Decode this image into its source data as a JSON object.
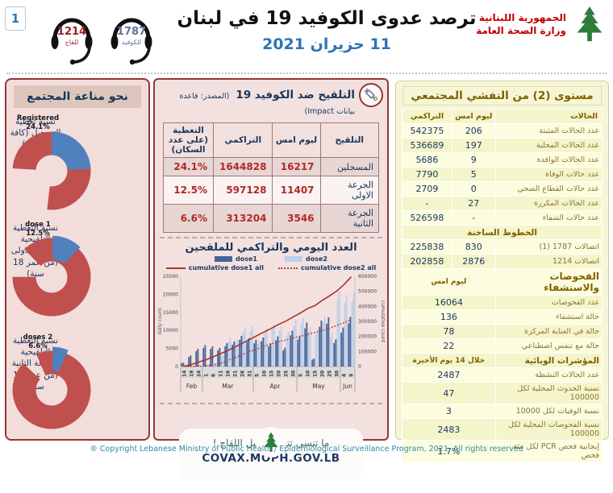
{
  "page_number": "1",
  "header": {
    "title": "ترصد عدوى الكوفيد 19 في لبنان",
    "date": "11 حزيران 2021",
    "hotline_vaccine": {
      "number": "1214",
      "label": "للقاح"
    },
    "hotline_covid": {
      "number": "1787",
      "label": "للكوفيد"
    },
    "logo_line1": "الجمهورية اللبنانية",
    "logo_line2": "وزارة الصحة العامة"
  },
  "immunity_panel": {
    "title": "نحو مناعة المجتمع",
    "colors": {
      "main": "#C0504D",
      "slice": "#4F81BD"
    },
    "donuts": [
      {
        "label": "نسبة تغطية التسجيل (كافة الاعمار)",
        "series_label": "Registered",
        "pct": 24.1,
        "pct_text": "24.1%",
        "explode": 0
      },
      {
        "label": "نسبة التغطية التلقيحية للجرعة الاولى (من عمر 18 سنة)",
        "series_label": "1 dose",
        "pct": 12.5,
        "pct_text": "12.5%",
        "explode": 3
      },
      {
        "label": "نسبة التغطية التلقيحية للجرعة الثانية (من عمر 18 سنة)",
        "series_label": "2 doses",
        "pct": 6.6,
        "pct_text": "6.6%",
        "explode": 5
      }
    ]
  },
  "vaccination": {
    "title": "التلقيح ضد الكوفيد 19",
    "source": "(المصدر: قاعدة بيانات Impact)",
    "syringe_icon": "syringe-icon",
    "table": {
      "headers": [
        "التلقيح",
        "ليوم امس",
        "التراكمي",
        "التغطية (على عدد السكان)"
      ],
      "rows": [
        {
          "label": "المسجلين",
          "yesterday": "16217",
          "cumulative": "1644828",
          "coverage": "24.1%"
        },
        {
          "label": "الجرعة الاولى",
          "yesterday": "11407",
          "cumulative": "597128",
          "coverage": "12.5%"
        },
        {
          "label": "الجرعة الثانية",
          "yesterday": "3546",
          "cumulative": "313204",
          "coverage": "6.6%"
        }
      ]
    }
  },
  "chart_data": {
    "type": "bar",
    "title": "العدد اليومي والتراكمي للملقحين",
    "x_tick_labels": [
      "14",
      "19",
      "24",
      "1",
      "6",
      "11",
      "16",
      "21",
      "26",
      "31",
      "5",
      "10",
      "15",
      "20",
      "25",
      "30",
      "5",
      "10",
      "15",
      "20",
      "25",
      "30",
      "4",
      "9"
    ],
    "month_groups": [
      {
        "label": "Feb",
        "ticks": 3
      },
      {
        "label": "Mar",
        "ticks": 7
      },
      {
        "label": "Apr",
        "ticks": 6
      },
      {
        "label": "May",
        "ticks": 6
      },
      {
        "label": "Jun",
        "ticks": 2
      }
    ],
    "left_axis": {
      "label": "daily count",
      "min": 0,
      "max": 25000,
      "step": 5000
    },
    "right_axis": {
      "label": "cumulative count",
      "min": 0,
      "max": 600000,
      "step": 100000
    },
    "series": [
      {
        "name": "dose1",
        "type": "bar",
        "color": "#44659B",
        "values": [
          1000,
          2900,
          4600,
          5600,
          5300,
          4900,
          6100,
          6600,
          8000,
          7400,
          7000,
          7600,
          6100,
          7900,
          4900,
          9400,
          8100,
          11500,
          2100,
          12000,
          12900,
          7100,
          10200,
          13000
        ]
      },
      {
        "name": "dose2",
        "type": "bar",
        "color": "#BDD0E9",
        "values": [
          0,
          100,
          300,
          500,
          900,
          3000,
          7400,
          7000,
          9900,
          10400,
          6600,
          9900,
          11000,
          10400,
          9000,
          12000,
          12500,
          10100,
          9500,
          13000,
          8600,
          19500,
          18600,
          19000
        ]
      },
      {
        "name": "cumulative dose1 all",
        "type": "line",
        "style": "solid",
        "color": "#A8332A",
        "axis": "right",
        "values": [
          2000,
          14000,
          30000,
          45000,
          65000,
          85000,
          107000,
          130000,
          155000,
          180000,
          205000,
          230000,
          254000,
          280000,
          302000,
          330000,
          356000,
          386000,
          405000,
          440000,
          470000,
          502000,
          545000,
          597128
        ]
      },
      {
        "name": "cumulative dose2 all",
        "type": "line",
        "style": "dotted",
        "color": "#B03A30",
        "axis": "right",
        "values": [
          0,
          500,
          1500,
          5000,
          10000,
          20000,
          40000,
          60000,
          80000,
          100000,
          115000,
          135000,
          150000,
          165000,
          176000,
          190000,
          201000,
          215000,
          226000,
          240000,
          255000,
          272000,
          291000,
          313204
        ]
      }
    ]
  },
  "covax": {
    "message": "ما تنسى تتسجل لنيل اللقاح !",
    "url": "COVAX.MOPH.GOV.LB"
  },
  "outbreak_panel": {
    "title": "مستوى (2) من التفشي المجتمعي",
    "col_headers": {
      "cases": "الحالات",
      "yesterday": "ليوم امس",
      "cumulative": "التراكمي"
    },
    "case_rows": [
      {
        "label": "عدد الحالات المثبتة",
        "yesterday": "206",
        "cumulative": "542375"
      },
      {
        "label": "عدد الحالات المحلية",
        "yesterday": "197",
        "cumulative": "536689"
      },
      {
        "label": "عدد الحالات الوافدة",
        "yesterday": "9",
        "cumulative": "5686"
      },
      {
        "label": "عدد حالات الوفاة",
        "yesterday": "5",
        "cumulative": "7790"
      },
      {
        "label": "عدد حالات القطاع الصحي",
        "yesterday": "0",
        "cumulative": "2709"
      },
      {
        "label": "عدد الحالات المكررة",
        "yesterday": "27",
        "cumulative": "-"
      },
      {
        "label": "عدد حالات الشفاء",
        "yesterday": "-",
        "cumulative": "526598"
      }
    ],
    "hotlines": {
      "title": "الخطوط الساخنة",
      "rows": [
        {
          "label": "اتصالات 1787 (1)",
          "yesterday": "830",
          "cumulative": "225838"
        },
        {
          "label": "اتصالات 1214",
          "yesterday": "2876",
          "cumulative": "202858"
        }
      ]
    },
    "tests": {
      "title": "الفحوصات والاستشفاء",
      "period": "ليوم امس",
      "rows": [
        {
          "label": "عدد الفحوصات",
          "value": "16064"
        },
        {
          "label": "حالة استشفاء",
          "value": "136"
        },
        {
          "label": "حالة في العناية المركزة",
          "value": "78"
        },
        {
          "label": "حالة مع تنفس اصطناعي",
          "value": "22"
        }
      ]
    },
    "indicators": {
      "title": "المؤشرات الوبائية",
      "period": "خلال 14 يوم الأخيرة",
      "rows": [
        {
          "label": "عدد الحالات النشطة",
          "value": "2487"
        },
        {
          "label": "نسبة الحدوث المحلية لكل 100000",
          "value": "47"
        },
        {
          "label": "نسبة الوفيات لكل 10000",
          "value": "3"
        },
        {
          "label": "نسبة الفحوصات المحلية لكل 100000",
          "value": "2483"
        },
        {
          "label": "إيجابية فحص PCR لكل مئة فحص",
          "value": "1.7%"
        }
      ]
    }
  },
  "footer": "® Copyright Lebanese Ministry of Public Health / Epidemiological Surveillance Program, 2021. All rights reserved"
}
